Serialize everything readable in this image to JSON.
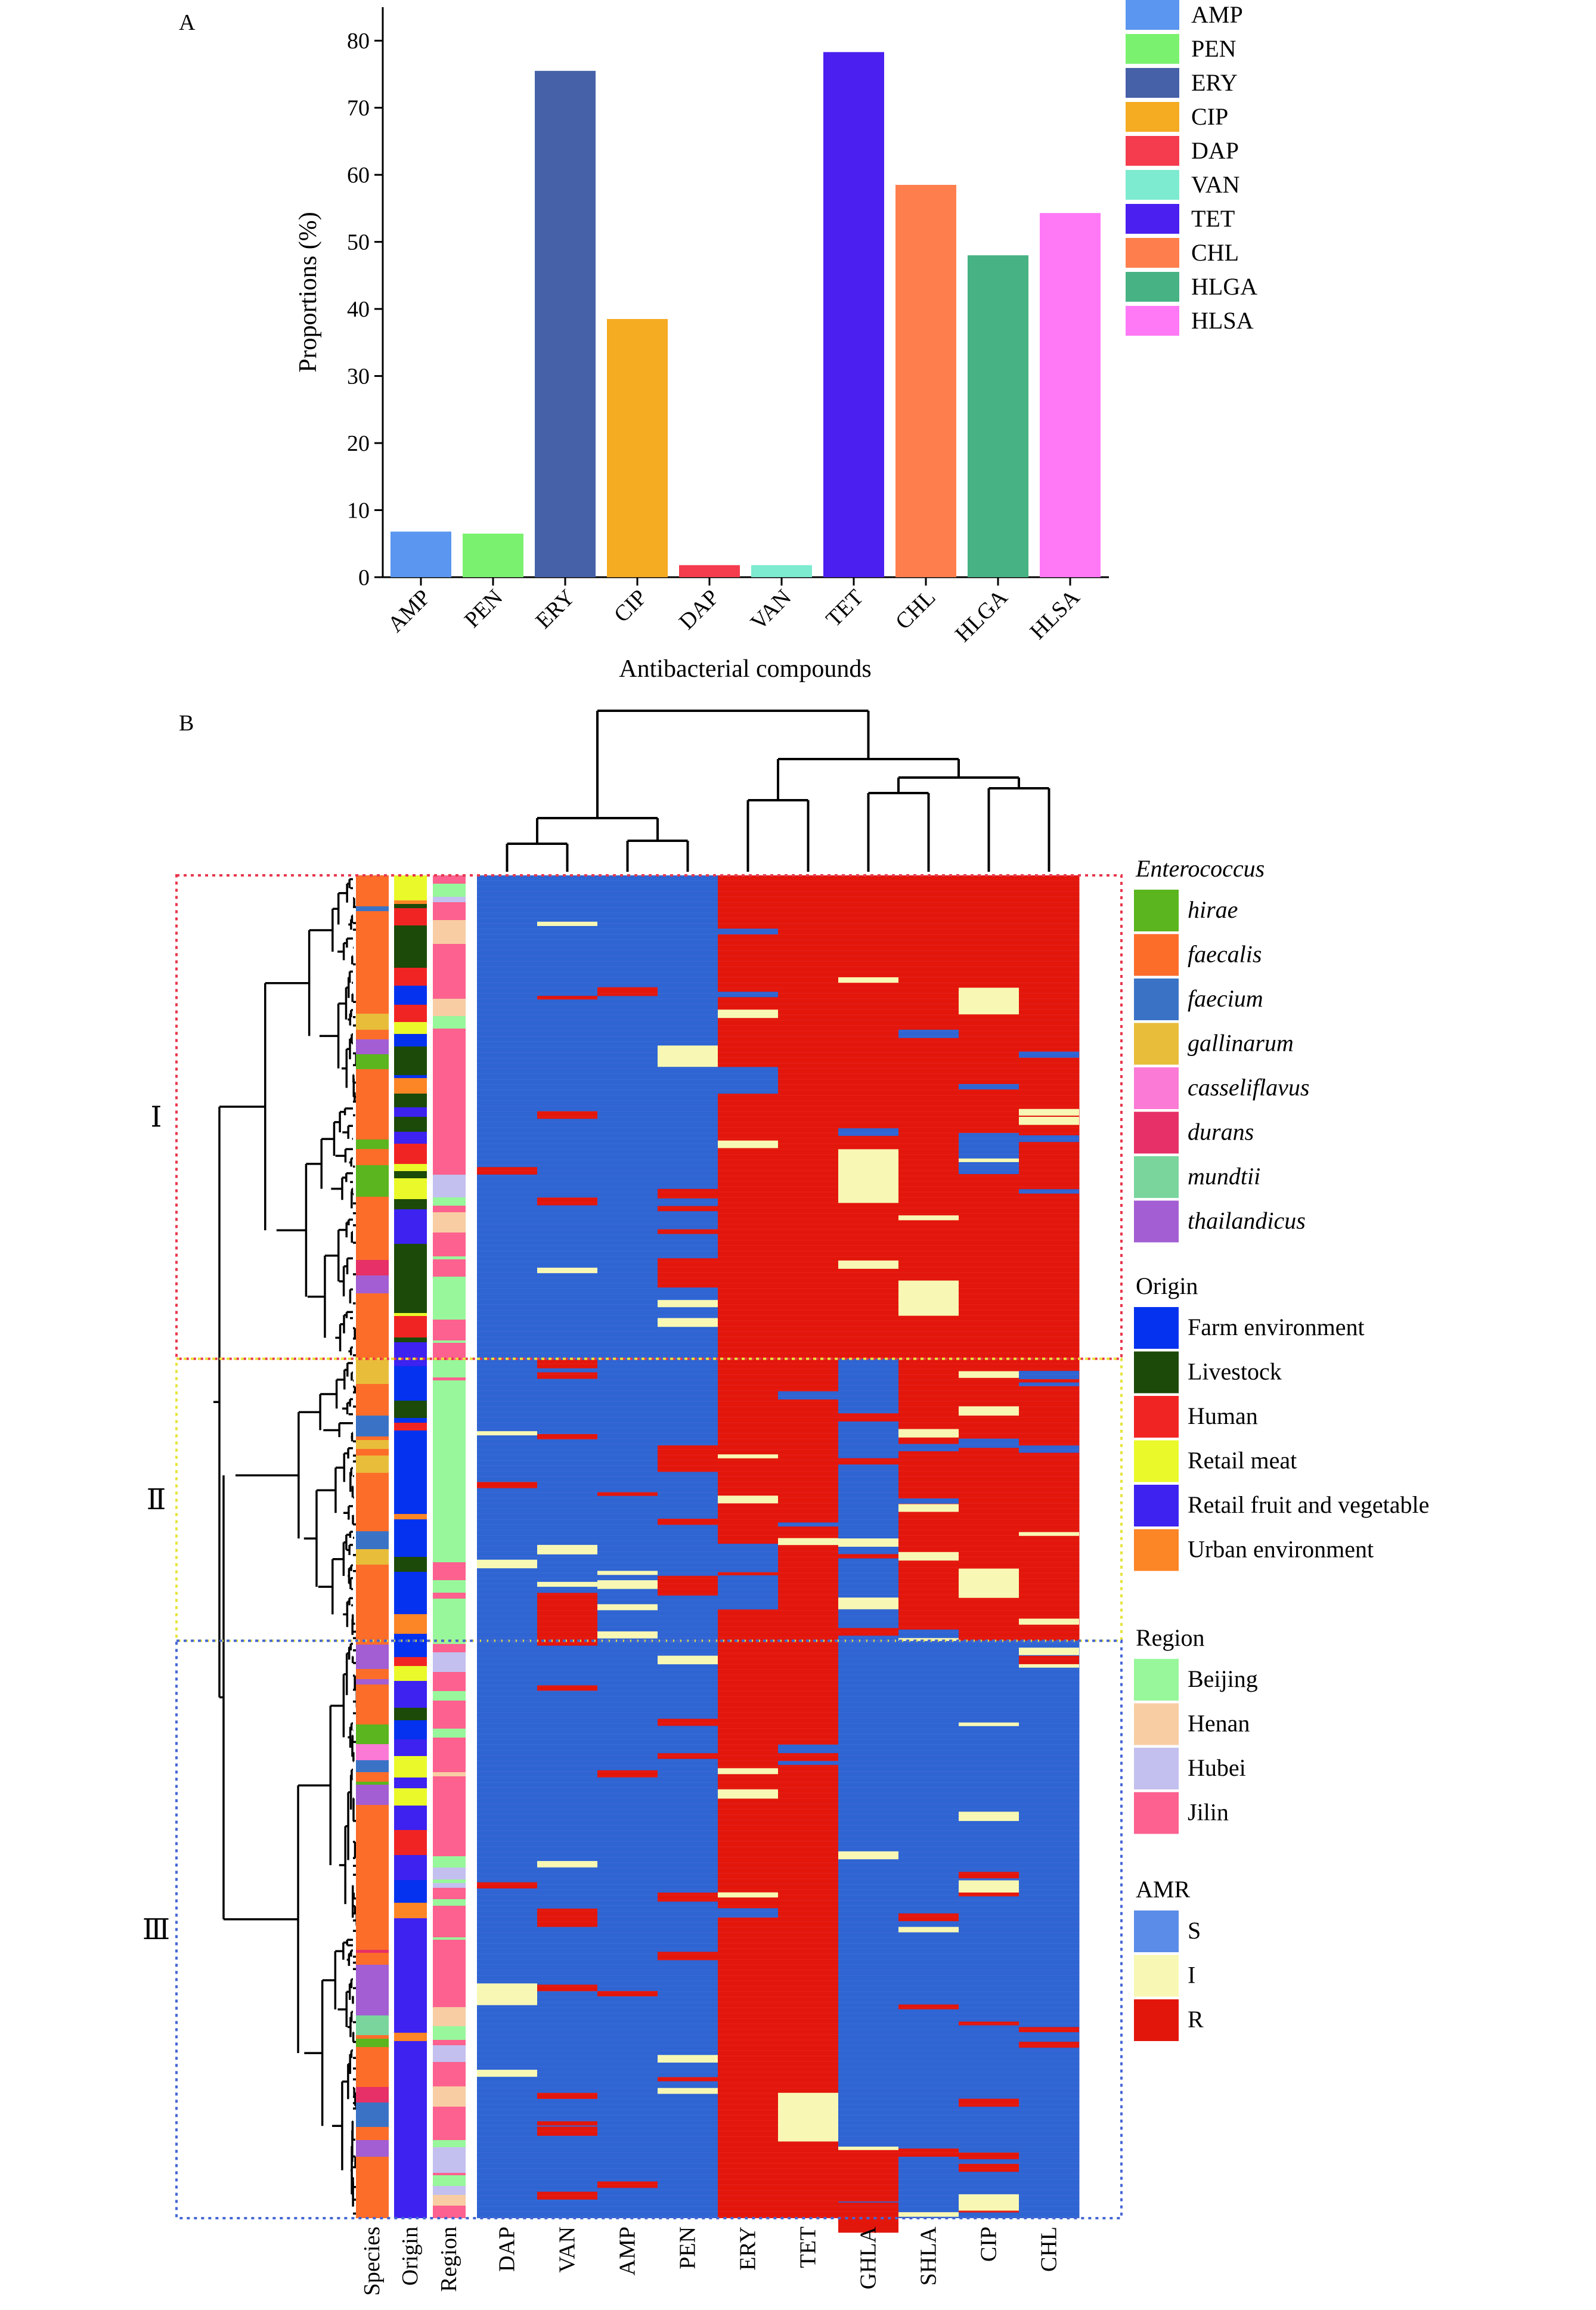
{
  "panel_a": {
    "letter": "A"
  },
  "panel_b": {
    "letter": "B"
  },
  "chart_data": [
    {
      "type": "bar",
      "title": "",
      "xlabel": "Antibacterial compounds",
      "ylabel": "Proportions (%)",
      "ylim": [
        0,
        85
      ],
      "yticks": [
        0,
        10,
        20,
        30,
        40,
        50,
        60,
        70,
        80
      ],
      "categories": [
        "AMP",
        "PEN",
        "ERY",
        "CIP",
        "DAP",
        "VAN",
        "TET",
        "CHL",
        "HLGA",
        "HLSA"
      ],
      "values": [
        6.8,
        6.5,
        75.5,
        38.5,
        1.8,
        1.8,
        78.3,
        58.5,
        48.0,
        54.3
      ],
      "colors": [
        "#5b96f0",
        "#7af26f",
        "#4661a8",
        "#f5ab22",
        "#f43c4e",
        "#7debd0",
        "#4a1ff0",
        "#fe7f4d",
        "#47b283",
        "#ff79f6"
      ],
      "legend": {
        "position": "top-right",
        "entries": [
          "AMP",
          "PEN",
          "ERY",
          "CIP",
          "DAP",
          "VAN",
          "TET",
          "CHL",
          "HLGA",
          "HLSA"
        ]
      }
    },
    {
      "type": "heatmap",
      "columns": [
        "DAP",
        "VAN",
        "AMP",
        "PEN",
        "ERY",
        "TET",
        "GHLA",
        "SHLA",
        "CIP",
        "CHL"
      ],
      "annotation_columns": [
        "Species",
        "Origin",
        "Region"
      ],
      "row_clusters": [
        {
          "label": "Ⅰ",
          "fraction_of_rows": 0.36,
          "border_color": "#e8374d"
        },
        {
          "label": "Ⅱ",
          "fraction_of_rows": 0.21,
          "border_color": "#e6e43a"
        },
        {
          "label": "Ⅲ",
          "fraction_of_rows": 0.43,
          "border_color": "#4566d4"
        }
      ],
      "column_dendrogram_order": [
        "DAP",
        "VAN",
        "AMP",
        "PEN",
        "ERY",
        "TET",
        "GHLA",
        "SHLA",
        "CIP",
        "CHL"
      ],
      "cluster_resistance_profile": {
        "Ⅰ": {
          "DAP": "S",
          "VAN": "S",
          "AMP": "S",
          "PEN": "S",
          "ERY": "R",
          "TET": "R",
          "GHLA": "R",
          "SHLA": "R",
          "CIP": "R",
          "CHL": "R"
        },
        "Ⅱ": {
          "DAP": "S",
          "VAN": "S",
          "AMP": "S",
          "PEN": "S",
          "ERY": "R",
          "TET": "R",
          "GHLA": "S",
          "SHLA": "R",
          "CIP": "R",
          "CHL": "R"
        },
        "Ⅲ": {
          "DAP": "S",
          "VAN": "S",
          "AMP": "S",
          "PEN": "S",
          "ERY": "R",
          "TET": "R",
          "GHLA": "S",
          "SHLA": "S",
          "CIP": "S",
          "CHL": "S"
        }
      },
      "legends": [
        {
          "title": "Enterococcus",
          "title_italic": true,
          "italic_entries": true,
          "entries": [
            {
              "label": "hirae",
              "color": "#5bb51e"
            },
            {
              "label": "faecalis",
              "color": "#fc6d2a"
            },
            {
              "label": "faecium",
              "color": "#3a73c6"
            },
            {
              "label": "gallinarum",
              "color": "#e8bd3a"
            },
            {
              "label": "casseliflavus",
              "color": "#fb7ad6"
            },
            {
              "label": "durans",
              "color": "#e63067"
            },
            {
              "label": "mundtii",
              "color": "#79d59c"
            },
            {
              "label": "thailandicus",
              "color": "#a35ed3"
            }
          ]
        },
        {
          "title": "Origin",
          "title_italic": false,
          "italic_entries": false,
          "entries": [
            {
              "label": "Farm environment",
              "color": "#0532ee"
            },
            {
              "label": "Livestock",
              "color": "#1c4a09"
            },
            {
              "label": "Human",
              "color": "#f12424"
            },
            {
              "label": "Retail meat",
              "color": "#eaf929"
            },
            {
              "label": "Retail fruit and vegetable",
              "color": "#3d22f0"
            },
            {
              "label": "Urban environment",
              "color": "#fc8526"
            }
          ]
        },
        {
          "title": "Region",
          "title_italic": false,
          "italic_entries": false,
          "entries": [
            {
              "label": "Beijing",
              "color": "#98f79b"
            },
            {
              "label": "Henan",
              "color": "#f8cda3"
            },
            {
              "label": "Hubei",
              "color": "#c3c0ef"
            },
            {
              "label": "Jilin",
              "color": "#fc618f"
            }
          ]
        },
        {
          "title": "AMR",
          "title_italic": false,
          "italic_entries": false,
          "entries": [
            {
              "label": "S",
              "color": "#5b8ce8"
            },
            {
              "label": "I",
              "color": "#f8f8b4"
            },
            {
              "label": "R",
              "color": "#e3160c"
            }
          ]
        }
      ]
    }
  ],
  "colors": {
    "heat_S": "#2f64d3",
    "heat_I": "#f8f8b4",
    "heat_R": "#e3160c"
  }
}
